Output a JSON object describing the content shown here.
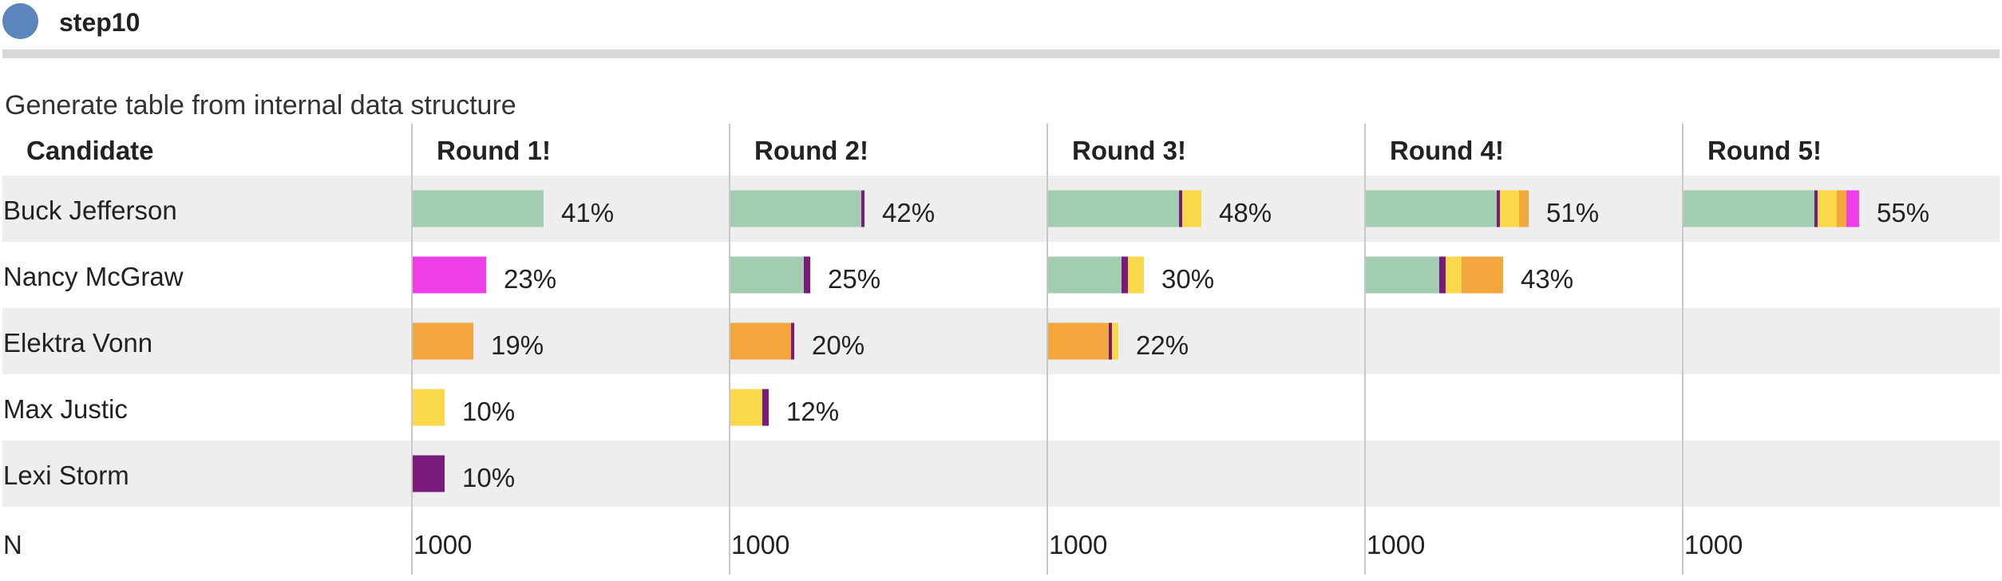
{
  "step": {
    "title": "step10"
  },
  "subtitle": "Generate table from internal data structure",
  "colors": {
    "Buck Jefferson": "#a3cdb0",
    "Nancy McGraw": "#ee3ee8",
    "Elektra Vonn": "#f2a63c",
    "Max Justic": "#f9d84a",
    "Lexi Storm": "#7a1a7a",
    "band": "#eeeeee",
    "divider": "#c8c8c8"
  },
  "chart_data": {
    "type": "table",
    "header_label": "Candidate",
    "footer_label": "N",
    "candidates": [
      "Buck Jefferson",
      "Nancy McGraw",
      "Elektra Vonn",
      "Max Justic",
      "Lexi Storm"
    ],
    "rounds": [
      {
        "label": "Round 1!",
        "n": "1000",
        "results": [
          {
            "candidate": "Buck Jefferson",
            "pct_label": "41%",
            "segments": [
              {
                "from": "Buck Jefferson",
                "value": 41
              }
            ]
          },
          {
            "candidate": "Nancy McGraw",
            "pct_label": "23%",
            "segments": [
              {
                "from": "Nancy McGraw",
                "value": 23
              }
            ]
          },
          {
            "candidate": "Elektra Vonn",
            "pct_label": "19%",
            "segments": [
              {
                "from": "Elektra Vonn",
                "value": 19
              }
            ]
          },
          {
            "candidate": "Max Justic",
            "pct_label": "10%",
            "segments": [
              {
                "from": "Max Justic",
                "value": 10
              }
            ]
          },
          {
            "candidate": "Lexi Storm",
            "pct_label": "10%",
            "segments": [
              {
                "from": "Lexi Storm",
                "value": 10
              }
            ]
          }
        ]
      },
      {
        "label": "Round 2!",
        "n": "1000",
        "results": [
          {
            "candidate": "Buck Jefferson",
            "pct_label": "42%",
            "segments": [
              {
                "from": "Buck Jefferson",
                "value": 41
              },
              {
                "from": "Lexi Storm",
                "value": 1
              }
            ]
          },
          {
            "candidate": "Nancy McGraw",
            "pct_label": "25%",
            "segments": [
              {
                "from": "Buck Jefferson",
                "value": 23
              },
              {
                "from": "Lexi Storm",
                "value": 2
              }
            ]
          },
          {
            "candidate": "Elektra Vonn",
            "pct_label": "20%",
            "segments": [
              {
                "from": "Elektra Vonn",
                "value": 19
              },
              {
                "from": "Lexi Storm",
                "value": 1
              }
            ]
          },
          {
            "candidate": "Max Justic",
            "pct_label": "12%",
            "segments": [
              {
                "from": "Max Justic",
                "value": 10
              },
              {
                "from": "Lexi Storm",
                "value": 2
              }
            ]
          }
        ]
      },
      {
        "label": "Round 3!",
        "n": "1000",
        "results": [
          {
            "candidate": "Buck Jefferson",
            "pct_label": "48%",
            "segments": [
              {
                "from": "Buck Jefferson",
                "value": 41
              },
              {
                "from": "Lexi Storm",
                "value": 1
              },
              {
                "from": "Max Justic",
                "value": 6
              }
            ]
          },
          {
            "candidate": "Nancy McGraw",
            "pct_label": "30%",
            "segments": [
              {
                "from": "Buck Jefferson",
                "value": 23
              },
              {
                "from": "Lexi Storm",
                "value": 2
              },
              {
                "from": "Max Justic",
                "value": 5
              }
            ]
          },
          {
            "candidate": "Elektra Vonn",
            "pct_label": "22%",
            "segments": [
              {
                "from": "Elektra Vonn",
                "value": 19
              },
              {
                "from": "Lexi Storm",
                "value": 1
              },
              {
                "from": "Max Justic",
                "value": 2
              }
            ]
          }
        ]
      },
      {
        "label": "Round 4!",
        "n": "1000",
        "results": [
          {
            "candidate": "Buck Jefferson",
            "pct_label": "51%",
            "segments": [
              {
                "from": "Buck Jefferson",
                "value": 41
              },
              {
                "from": "Lexi Storm",
                "value": 1
              },
              {
                "from": "Max Justic",
                "value": 6
              },
              {
                "from": "Elektra Vonn",
                "value": 3
              }
            ]
          },
          {
            "candidate": "Nancy McGraw",
            "pct_label": "43%",
            "segments": [
              {
                "from": "Buck Jefferson",
                "value": 23
              },
              {
                "from": "Lexi Storm",
                "value": 2
              },
              {
                "from": "Max Justic",
                "value": 5
              },
              {
                "from": "Elektra Vonn",
                "value": 13
              }
            ]
          }
        ]
      },
      {
        "label": "Round 5!",
        "n": "1000",
        "results": [
          {
            "candidate": "Buck Jefferson",
            "pct_label": "55%",
            "segments": [
              {
                "from": "Buck Jefferson",
                "value": 41
              },
              {
                "from": "Lexi Storm",
                "value": 1
              },
              {
                "from": "Max Justic",
                "value": 6
              },
              {
                "from": "Elektra Vonn",
                "value": 3
              },
              {
                "from": "Nancy McGraw",
                "value": 4
              }
            ]
          }
        ]
      }
    ]
  }
}
